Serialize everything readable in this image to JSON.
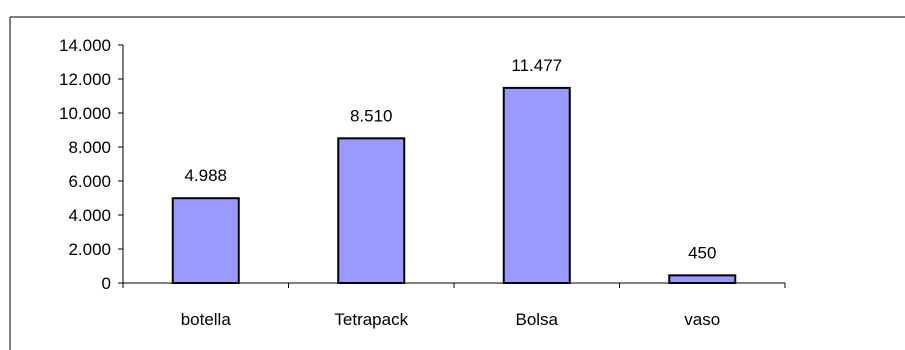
{
  "chart_data": {
    "type": "bar",
    "title": "",
    "xlabel": "",
    "ylabel": "",
    "categories": [
      "botella",
      "Tetrapack",
      "Bolsa",
      "vaso"
    ],
    "values": [
      4988,
      8510,
      11477,
      450
    ],
    "value_labels": [
      "4.988",
      "8.510",
      "11.477",
      "450"
    ],
    "y_ticks": [
      0,
      2000,
      4000,
      6000,
      8000,
      10000,
      12000,
      14000
    ],
    "y_tick_labels": [
      "0",
      "2.000",
      "4.000",
      "6.000",
      "8.000",
      "10.000",
      "12.000",
      "14.000"
    ],
    "ylim": [
      0,
      14000
    ],
    "grid": false,
    "legend": "none",
    "bar_color": "#9999ff",
    "bar_border_color": "#000000"
  }
}
